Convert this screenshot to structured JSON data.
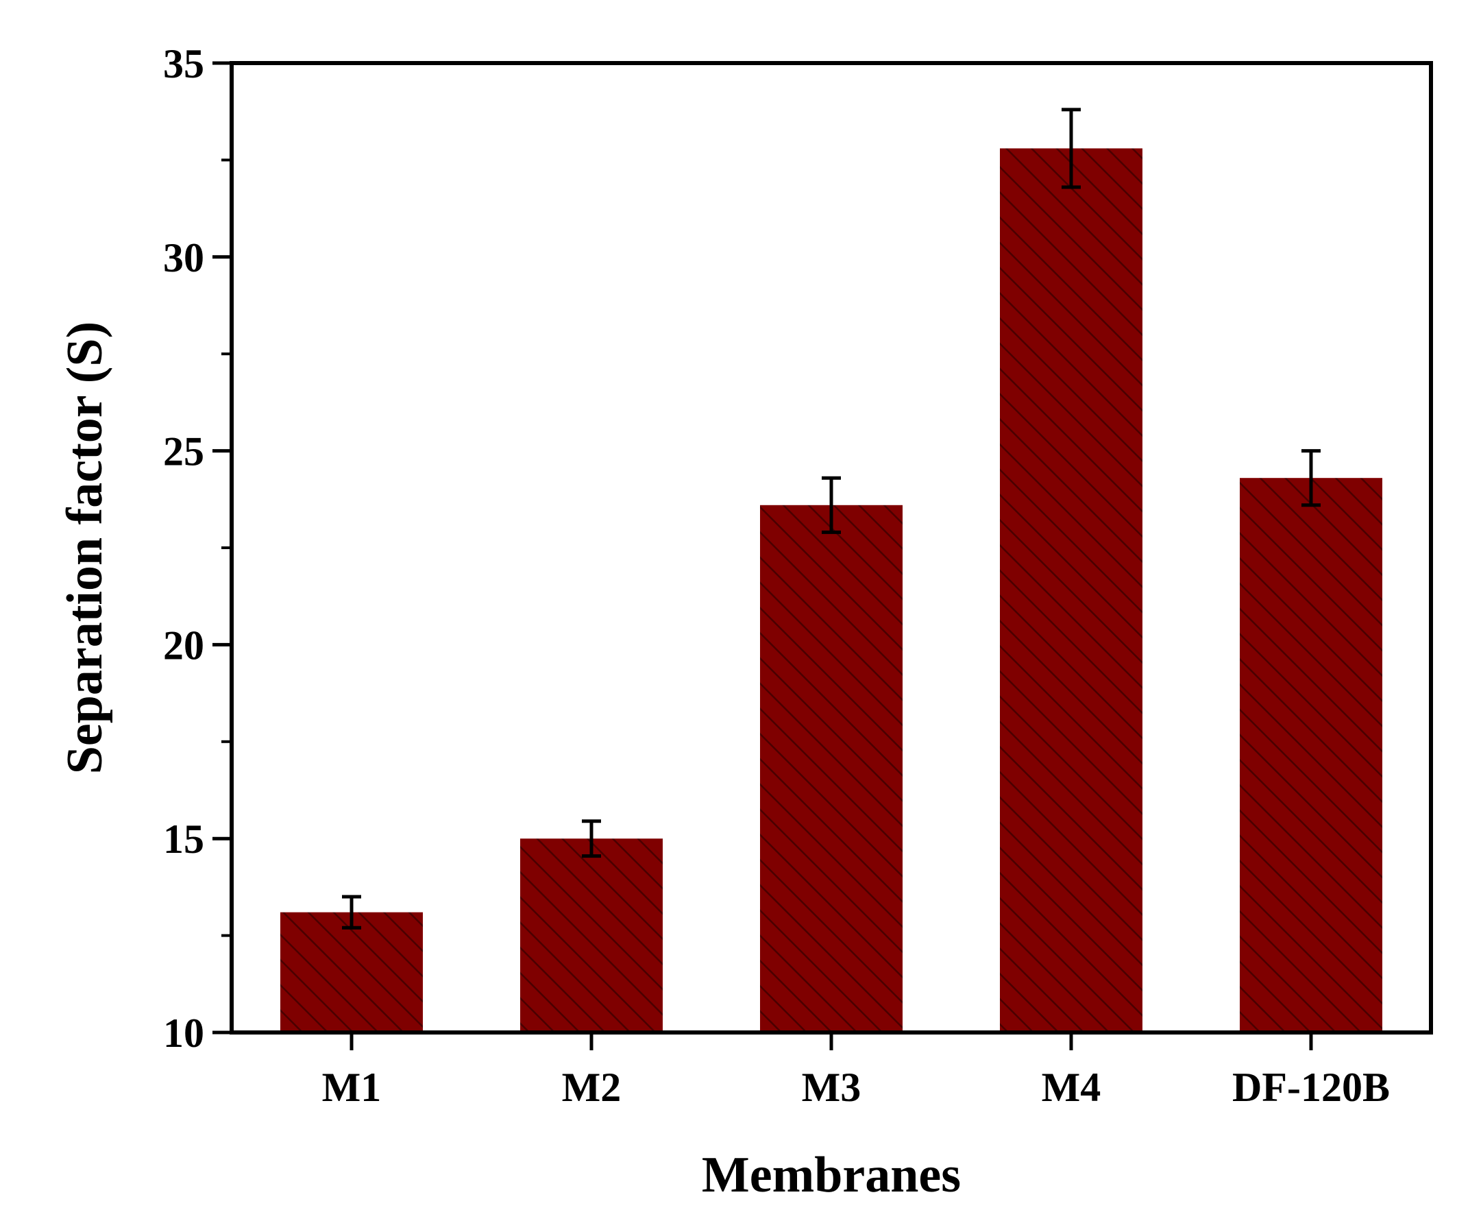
{
  "chart_data": {
    "type": "bar",
    "categories": [
      "M1",
      "M2",
      "M3",
      "M4",
      "DF-120B"
    ],
    "values": [
      13.1,
      15.0,
      23.6,
      32.8,
      24.3
    ],
    "errors": [
      0.4,
      0.45,
      0.7,
      1.0,
      0.7
    ],
    "title": "",
    "xlabel": "Membranes",
    "ylabel": "Separation factor (S)",
    "ylim": [
      10,
      35
    ],
    "yticks": [
      10,
      15,
      20,
      25,
      30,
      35
    ],
    "grid": false,
    "legend": "none",
    "bar_pattern": "diagonal-hatch",
    "colors": {
      "bar_fill": "#7f0000",
      "hatch": "#4a0000",
      "axis": "#000000",
      "background": "#ffffff"
    }
  }
}
